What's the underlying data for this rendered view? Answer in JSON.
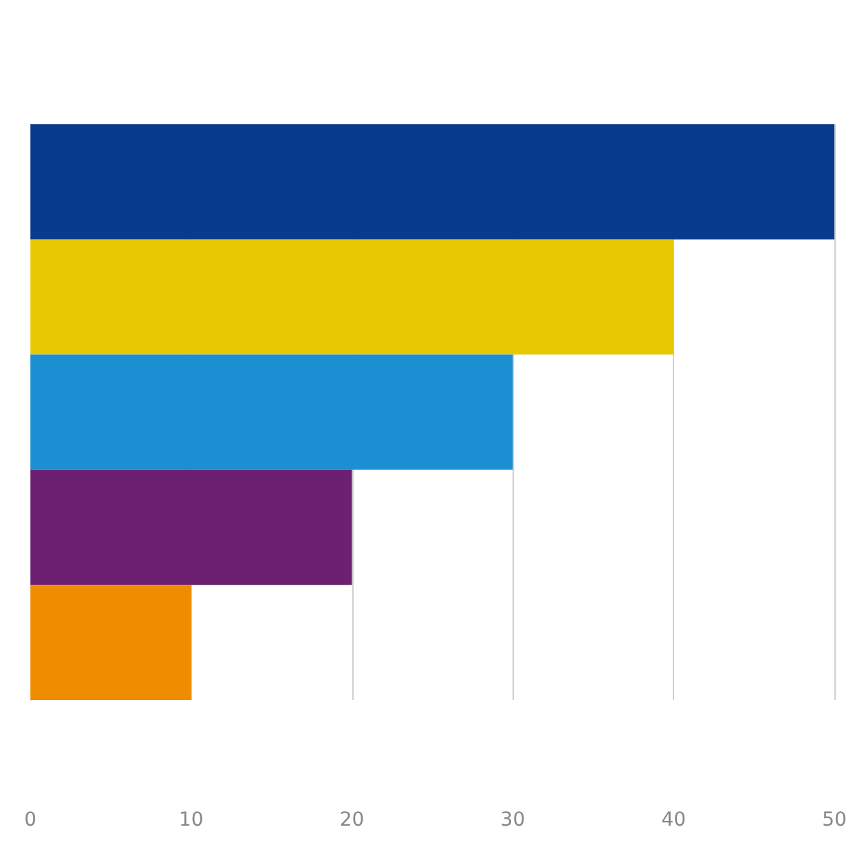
{
  "chart_data": {
    "type": "bar",
    "orientation": "horizontal",
    "categories": [
      null,
      null,
      null,
      null,
      null
    ],
    "values": [
      50,
      40,
      30,
      20,
      10
    ],
    "colors": [
      "#0a3a8c",
      "#e8c800",
      "#1b8fd2",
      "#6b2070",
      "#f08c00"
    ],
    "xlim": [
      0,
      50
    ],
    "xticks": [
      0,
      10,
      20,
      30,
      40,
      50
    ],
    "grid": "x",
    "tick_labels": "x"
  }
}
